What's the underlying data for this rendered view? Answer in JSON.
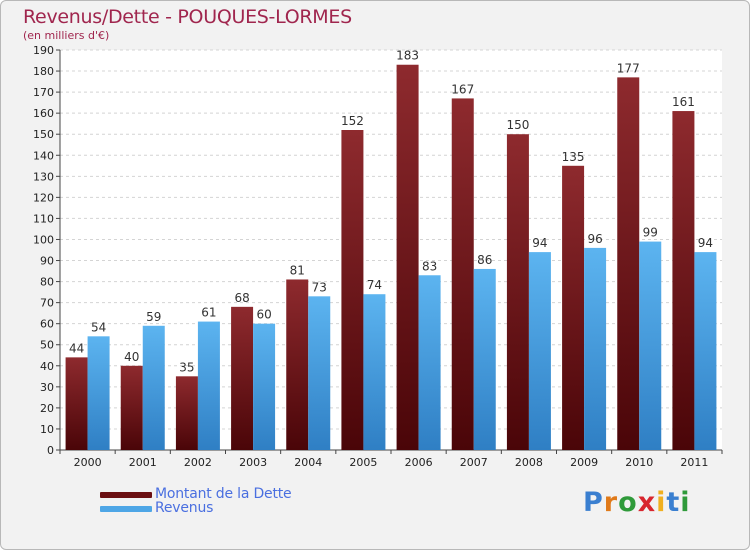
{
  "header": {
    "title": "Revenus/Dette - POUQUES-LORMES",
    "subtitle": "(en milliers d'€)"
  },
  "chart_data": {
    "type": "bar",
    "categories": [
      "2000",
      "2001",
      "2002",
      "2003",
      "2004",
      "2005",
      "2006",
      "2007",
      "2008",
      "2009",
      "2010",
      "2011"
    ],
    "series": [
      {
        "name": "Montant de la Dette",
        "color": "#7a1a1e",
        "values": [
          44,
          40,
          35,
          68,
          81,
          152,
          183,
          167,
          150,
          135,
          177,
          161
        ]
      },
      {
        "name": "Revenus",
        "color": "#4ea6e6",
        "values": [
          54,
          59,
          61,
          60,
          73,
          74,
          83,
          86,
          94,
          96,
          99,
          94
        ]
      }
    ],
    "ylim": [
      0,
      190
    ],
    "yticks": [
      0,
      10,
      20,
      30,
      40,
      50,
      60,
      70,
      80,
      90,
      100,
      110,
      120,
      130,
      140,
      150,
      160,
      170,
      180,
      190
    ],
    "grid": true,
    "legend": "bottom-left"
  },
  "legend": {
    "items": [
      {
        "label": "Montant de la Dette",
        "color": "#6b0f12"
      },
      {
        "label": "Revenus",
        "color": "#4ea6e6"
      }
    ]
  },
  "logo": {
    "letters": [
      "P",
      "r",
      "o",
      "x",
      "i",
      "t",
      "i"
    ],
    "colors": [
      "#3a7fd0",
      "#e07a1a",
      "#2f9a3a",
      "#d8262e",
      "#f0b020",
      "#3a7fd0",
      "#2f9a3a"
    ]
  }
}
